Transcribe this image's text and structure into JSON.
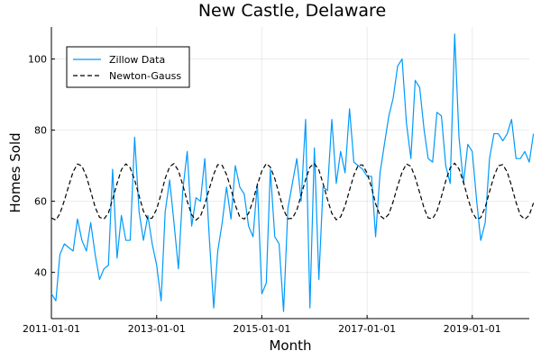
{
  "chart_data": {
    "type": "line",
    "title": "New Castle, Delaware",
    "xlabel": "Month",
    "ylabel": "Homes Sold",
    "x_range": [
      "2011-01-01",
      "2020-02-01"
    ],
    "ylim": [
      27,
      109
    ],
    "x_ticks": [
      "2011-01-01",
      "2013-01-01",
      "2015-01-01",
      "2017-01-01",
      "2019-01-01"
    ],
    "y_ticks": [
      40,
      60,
      80,
      100
    ],
    "grid": true,
    "legend": "top-left",
    "series": [
      {
        "name": "Zillow Data",
        "color": "#009af9",
        "dash": "solid",
        "start": "2011-01-01",
        "step": "month",
        "values": [
          34,
          32,
          45,
          48,
          47,
          46,
          55,
          49,
          46,
          54,
          45,
          38,
          41,
          42,
          69,
          44,
          56,
          49,
          49,
          78,
          57,
          49,
          56,
          48,
          42,
          32,
          57,
          66,
          54,
          41,
          63,
          74,
          53,
          61,
          60,
          72,
          50,
          30,
          46,
          54,
          64,
          55,
          70,
          64,
          62,
          53,
          50,
          65,
          34,
          37,
          69,
          50,
          48,
          29,
          58,
          65,
          72,
          60,
          83,
          30,
          75,
          38,
          64,
          63,
          83,
          65,
          74,
          68,
          86,
          71,
          70,
          69,
          67,
          67,
          50,
          68,
          76,
          84,
          89,
          98,
          100,
          82,
          72,
          94,
          92,
          80,
          72,
          71,
          85,
          84,
          70,
          65,
          107,
          78,
          65,
          76,
          74,
          60,
          49,
          54,
          72,
          79,
          79,
          77,
          79,
          83,
          72,
          72,
          74,
          71,
          79
        ]
      },
      {
        "name": "Newton-Gauss",
        "color": "#000000",
        "dash": "dashed",
        "start": "2011-01-01",
        "step": "month",
        "values": [
          55.3,
          54.7,
          56.5,
          60.2,
          64.3,
          68.3,
          70.5,
          69.9,
          67.0,
          62.8,
          58.3,
          55.5,
          55.0,
          56.7,
          60.6,
          65.0,
          68.9,
          70.5,
          69.4,
          66.0,
          61.5,
          57.2,
          55.0,
          55.3,
          57.8,
          62.1,
          66.4,
          69.7,
          70.6,
          68.6,
          64.6,
          60.0,
          56.2,
          54.7,
          55.8,
          59.1,
          63.5,
          67.6,
          70.3,
          70.1,
          67.5,
          63.5,
          58.9,
          55.6,
          55.0,
          56.6,
          60.2,
          64.6,
          68.5,
          70.6,
          69.6,
          66.4,
          62.0,
          57.6,
          55.1,
          55.2,
          57.5,
          61.7,
          66.1,
          69.6,
          70.6,
          68.8,
          65.0,
          60.5,
          56.6,
          54.8,
          55.6,
          58.7,
          63.1,
          67.3,
          70.2,
          70.2,
          67.9,
          63.9,
          59.3,
          55.9,
          55.0,
          56.4,
          59.9,
          64.3,
          68.2,
          70.5,
          69.8,
          66.7,
          62.4,
          58.0,
          55.3,
          55.1,
          57.2,
          61.3,
          65.7,
          69.4,
          70.7,
          69.1,
          65.4,
          60.9,
          56.9,
          54.9,
          55.4,
          58.3,
          62.7,
          67.0,
          70.0,
          70.3,
          68.2,
          64.3,
          59.7,
          56.1,
          54.9,
          56.1,
          59.5
        ]
      }
    ]
  }
}
